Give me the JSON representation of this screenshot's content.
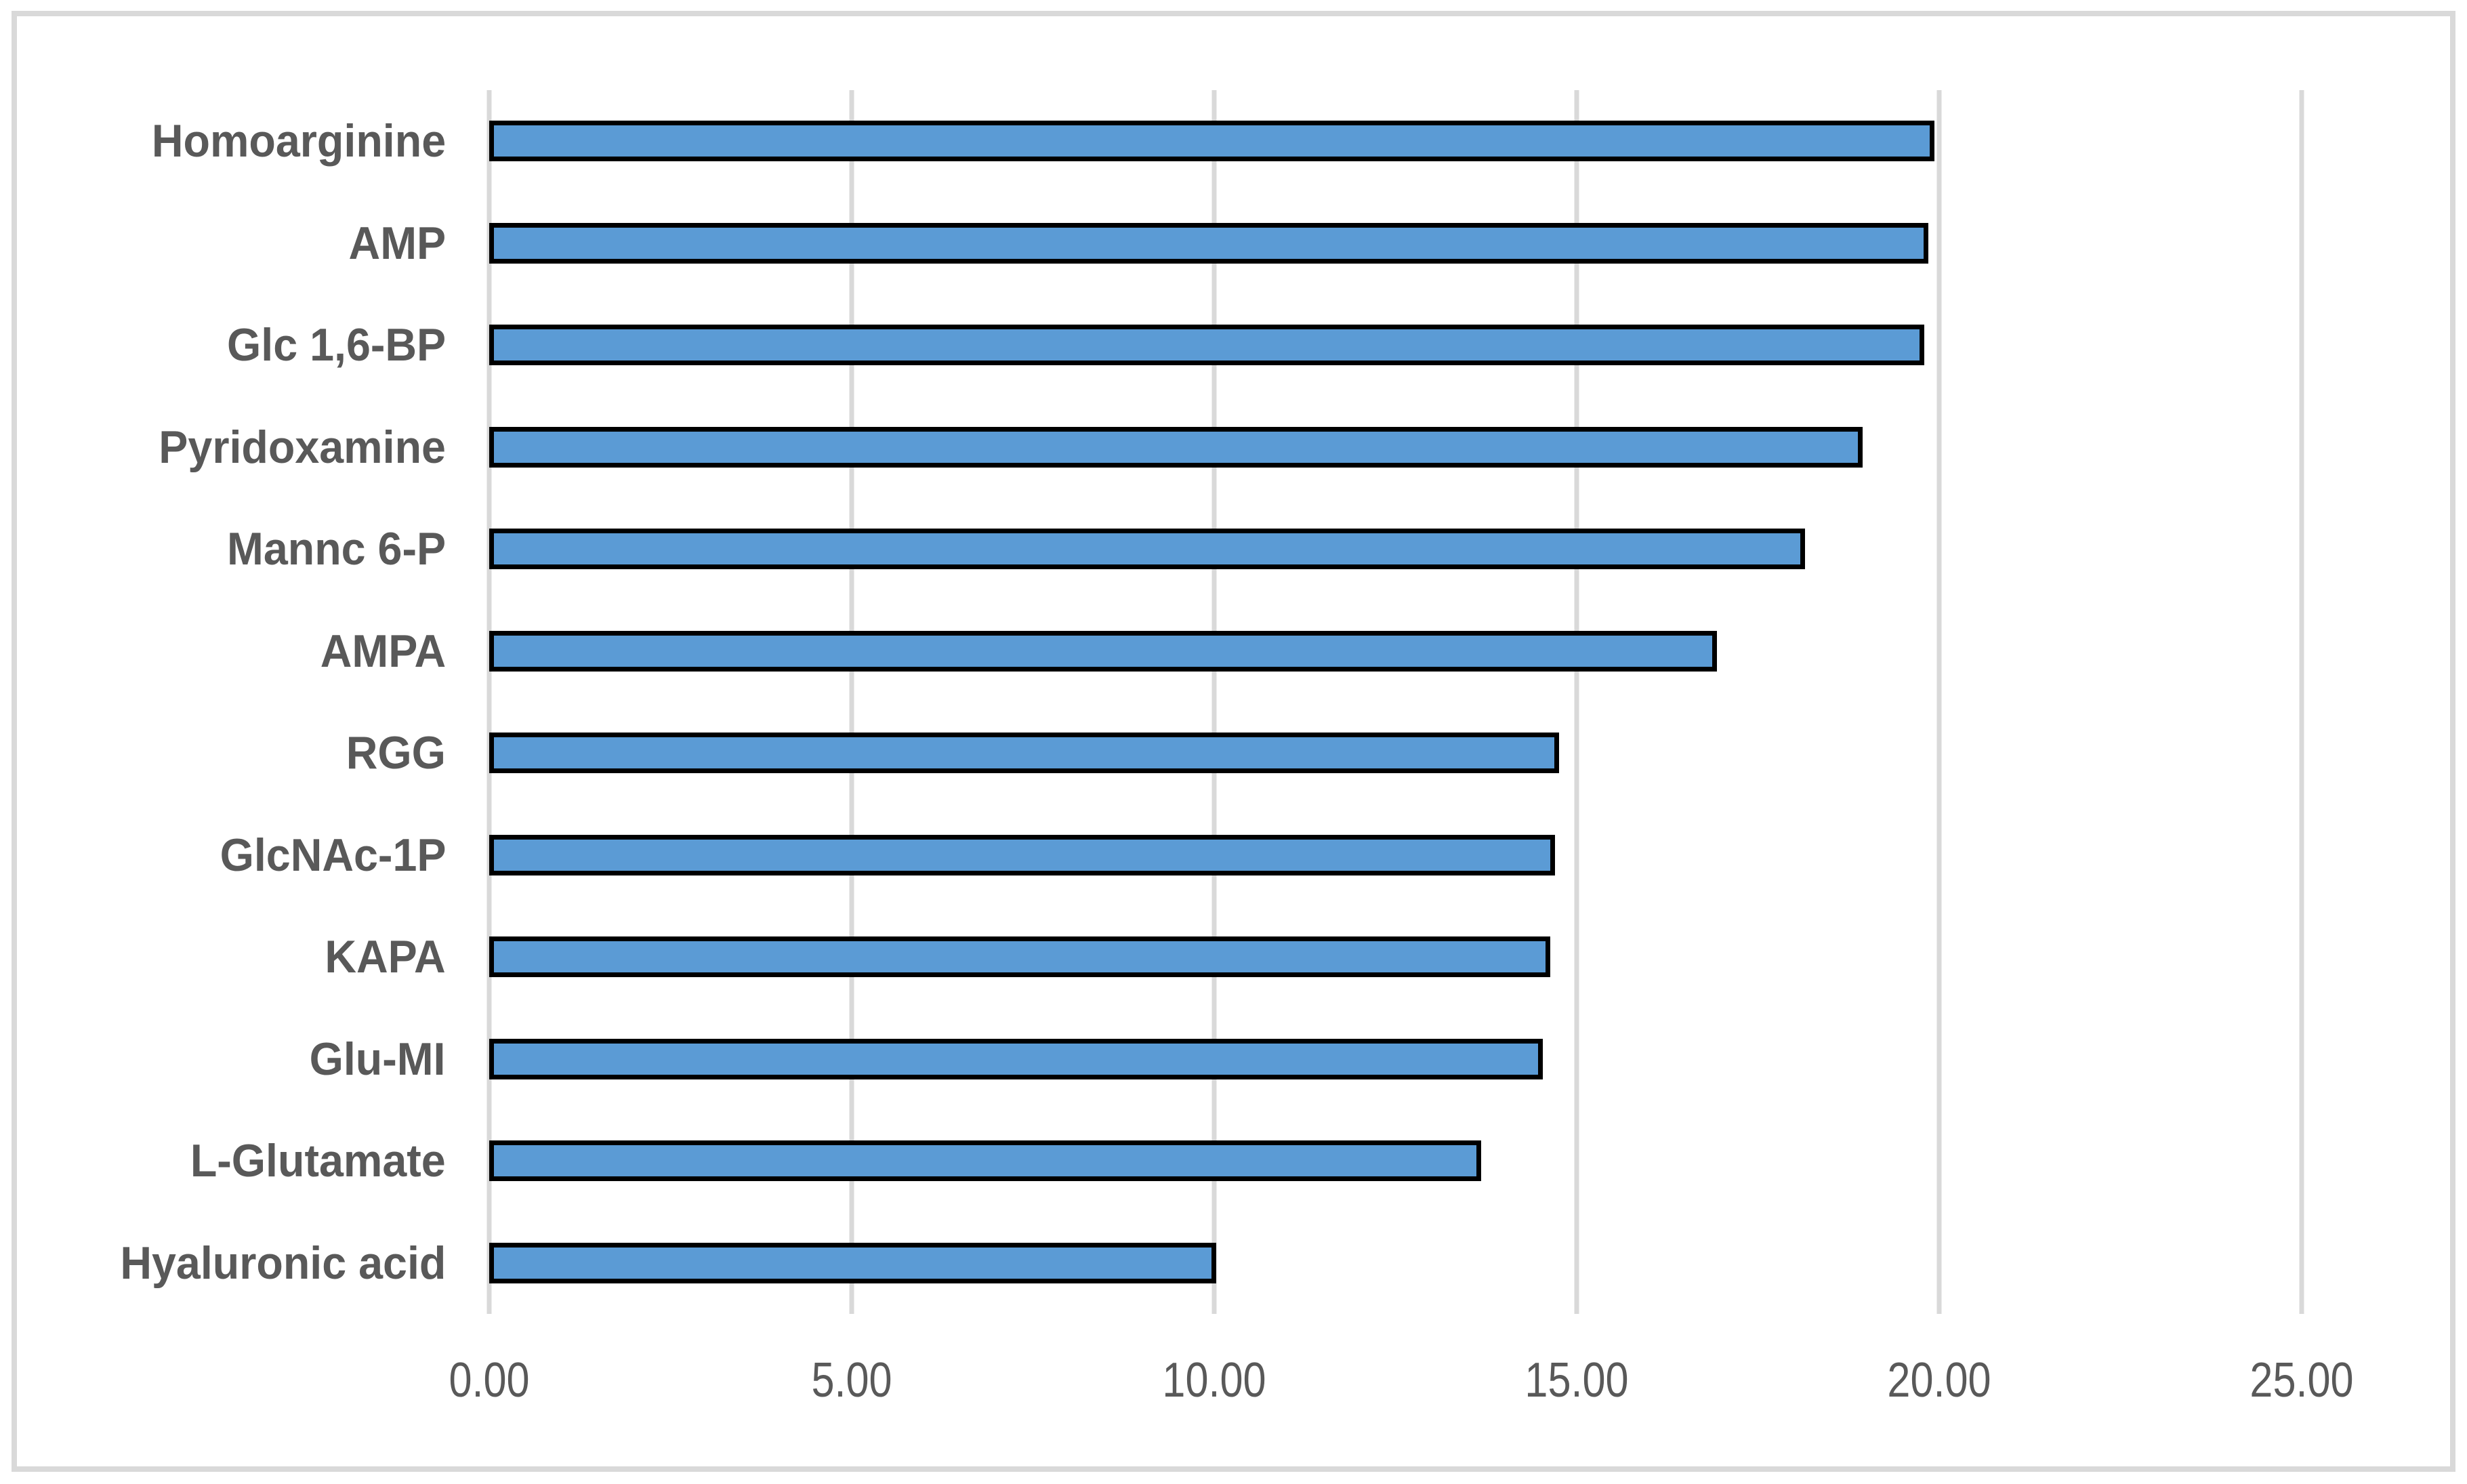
{
  "chart": {
    "background": "#FFFFFF",
    "frame_color": "#D9D9D9",
    "grid_color": "#D9D9D9",
    "text_color": "#595959",
    "bar_fill": "#5B9BD5",
    "bar_border": "#000000"
  },
  "chart_data": {
    "type": "bar",
    "orientation": "horizontal",
    "categories": [
      "Homoarginine",
      "AMP",
      "Glc 1,6-BP",
      "Pyridoxamine",
      "Mannc 6-P",
      "AMPA",
      "RGG",
      "GlcNAc-1P",
      "KAPA",
      "Glu-MI",
      "L-Glutamate",
      "Hyaluronic acid"
    ],
    "values": [
      19.93,
      19.85,
      19.79,
      18.94,
      18.15,
      16.93,
      14.76,
      14.7,
      14.64,
      14.53,
      13.68,
      10.03
    ],
    "xlim": [
      0,
      25
    ],
    "xticks": [
      {
        "value": 0,
        "label": "0.00"
      },
      {
        "value": 5,
        "label": "5.00"
      },
      {
        "value": 10,
        "label": "10.00"
      },
      {
        "value": 15,
        "label": "15.00"
      },
      {
        "value": 20,
        "label": "20.00"
      },
      {
        "value": 25,
        "label": "25.00"
      }
    ],
    "grid": true,
    "legend": false,
    "title": ""
  }
}
